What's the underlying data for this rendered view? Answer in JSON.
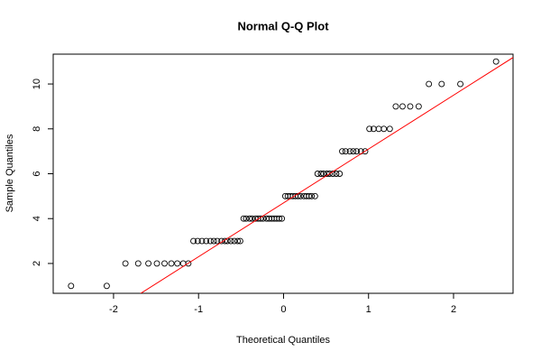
{
  "chart_data": {
    "type": "scatter",
    "title": "Normal Q-Q Plot",
    "x_label": "Theoretical Quantiles",
    "y_label": "Sample Quantiles",
    "x": [
      -2.5,
      -2.08,
      -1.86,
      -1.71,
      -1.59,
      -1.49,
      -1.4,
      -1.32,
      -1.25,
      -1.18,
      -1.12,
      -1.06,
      -1.01,
      -0.96,
      -0.91,
      -0.86,
      -0.82,
      -0.78,
      -0.73,
      -0.69,
      -0.66,
      -0.62,
      -0.58,
      -0.54,
      -0.51,
      -0.47,
      -0.44,
      -0.4,
      -0.37,
      -0.33,
      -0.3,
      -0.27,
      -0.24,
      -0.2,
      -0.17,
      -0.14,
      -0.11,
      -0.08,
      -0.05,
      -0.02,
      0.02,
      0.05,
      0.08,
      0.11,
      0.14,
      0.17,
      0.2,
      0.24,
      0.27,
      0.3,
      0.33,
      0.37,
      0.4,
      0.44,
      0.47,
      0.51,
      0.54,
      0.58,
      0.62,
      0.66,
      0.69,
      0.73,
      0.78,
      0.82,
      0.86,
      0.91,
      0.96,
      1.01,
      1.06,
      1.12,
      1.18,
      1.25,
      1.32,
      1.4,
      1.49,
      1.59,
      1.71,
      1.86,
      2.08,
      2.5
    ],
    "values": [
      1,
      1,
      2,
      2,
      2,
      2,
      2,
      2,
      2,
      2,
      2,
      3,
      3,
      3,
      3,
      3,
      3,
      3,
      3,
      3,
      3,
      3,
      3,
      3,
      3,
      4,
      4,
      4,
      4,
      4,
      4,
      4,
      4,
      4,
      4,
      4,
      4,
      4,
      4,
      4,
      5,
      5,
      5,
      5,
      5,
      5,
      5,
      5,
      5,
      5,
      5,
      5,
      6,
      6,
      6,
      6,
      6,
      6,
      6,
      6,
      7,
      7,
      7,
      7,
      7,
      7,
      7,
      8,
      8,
      8,
      8,
      8,
      9,
      9,
      9,
      9,
      10,
      10,
      10,
      11
    ],
    "color": "#000000",
    "line": {
      "intercept": 4.7,
      "slope": 2.4,
      "color": "#ff0000"
    },
    "xlim": [
      -2.71,
      2.7
    ],
    "ylim": [
      0.67,
      11.33
    ],
    "xticks": [
      -2,
      -1,
      0,
      1,
      2
    ],
    "yticks": [
      2,
      4,
      6,
      8,
      10
    ],
    "grid": false
  }
}
